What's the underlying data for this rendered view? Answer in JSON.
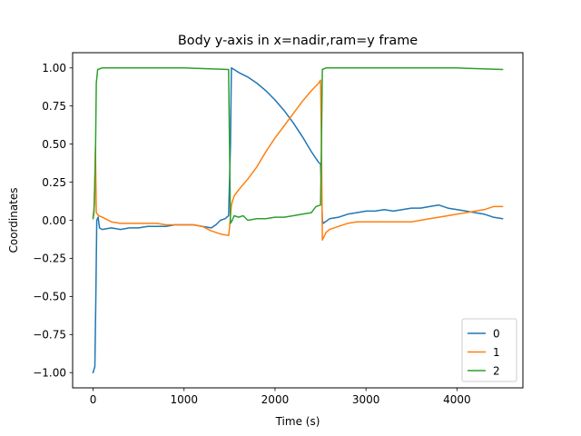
{
  "chart_data": {
    "type": "line",
    "title": "Body y-axis in x=nadir,ram=y frame",
    "xlabel": "Time (s)",
    "ylabel": "Coordinates",
    "xlim": [
      -225,
      4725
    ],
    "ylim": [
      -1.1,
      1.1
    ],
    "xticks": [
      0,
      1000,
      2000,
      3000,
      4000
    ],
    "xtick_labels": [
      "0",
      "1000",
      "2000",
      "3000",
      "4000"
    ],
    "yticks": [
      -1.0,
      -0.75,
      -0.5,
      -0.25,
      0.0,
      0.25,
      0.5,
      0.75,
      1.0
    ],
    "ytick_labels": [
      "−1.00",
      "−0.75",
      "−0.50",
      "−0.25",
      "0.00",
      "0.25",
      "0.50",
      "0.75",
      "1.00"
    ],
    "grid": false,
    "legend_position": "lower-right",
    "series": [
      {
        "name": "0",
        "color": "#1f77b4",
        "points": [
          [
            0,
            -1.0
          ],
          [
            20,
            -0.96
          ],
          [
            30,
            -0.5
          ],
          [
            40,
            0.0
          ],
          [
            55,
            0.02
          ],
          [
            70,
            -0.05
          ],
          [
            100,
            -0.06
          ],
          [
            200,
            -0.05
          ],
          [
            300,
            -0.06
          ],
          [
            400,
            -0.05
          ],
          [
            500,
            -0.05
          ],
          [
            600,
            -0.04
          ],
          [
            700,
            -0.04
          ],
          [
            800,
            -0.04
          ],
          [
            900,
            -0.03
          ],
          [
            1000,
            -0.03
          ],
          [
            1100,
            -0.03
          ],
          [
            1200,
            -0.04
          ],
          [
            1300,
            -0.05
          ],
          [
            1350,
            -0.03
          ],
          [
            1400,
            0.0
          ],
          [
            1450,
            0.01
          ],
          [
            1490,
            0.03
          ],
          [
            1510,
            0.5
          ],
          [
            1520,
            1.0
          ],
          [
            1550,
            0.99
          ],
          [
            1600,
            0.97
          ],
          [
            1700,
            0.94
          ],
          [
            1800,
            0.9
          ],
          [
            1900,
            0.85
          ],
          [
            2000,
            0.79
          ],
          [
            2100,
            0.72
          ],
          [
            2200,
            0.64
          ],
          [
            2300,
            0.55
          ],
          [
            2400,
            0.45
          ],
          [
            2480,
            0.38
          ],
          [
            2500,
            0.37
          ],
          [
            2510,
            0.2
          ],
          [
            2520,
            0.0
          ],
          [
            2530,
            -0.02
          ],
          [
            2600,
            0.01
          ],
          [
            2700,
            0.02
          ],
          [
            2800,
            0.04
          ],
          [
            2900,
            0.05
          ],
          [
            3000,
            0.06
          ],
          [
            3100,
            0.06
          ],
          [
            3200,
            0.07
          ],
          [
            3300,
            0.06
          ],
          [
            3400,
            0.07
          ],
          [
            3500,
            0.08
          ],
          [
            3600,
            0.08
          ],
          [
            3700,
            0.09
          ],
          [
            3800,
            0.1
          ],
          [
            3900,
            0.08
          ],
          [
            4000,
            0.07
          ],
          [
            4100,
            0.06
          ],
          [
            4200,
            0.05
          ],
          [
            4300,
            0.04
          ],
          [
            4400,
            0.02
          ],
          [
            4500,
            0.01
          ]
        ]
      },
      {
        "name": "1",
        "color": "#ff7f0e",
        "points": [
          [
            0,
            0.02
          ],
          [
            15,
            0.1
          ],
          [
            25,
            0.48
          ],
          [
            35,
            0.05
          ],
          [
            60,
            0.03
          ],
          [
            100,
            0.02
          ],
          [
            200,
            -0.01
          ],
          [
            300,
            -0.02
          ],
          [
            400,
            -0.02
          ],
          [
            500,
            -0.02
          ],
          [
            600,
            -0.02
          ],
          [
            700,
            -0.02
          ],
          [
            800,
            -0.03
          ],
          [
            900,
            -0.03
          ],
          [
            1000,
            -0.03
          ],
          [
            1100,
            -0.03
          ],
          [
            1200,
            -0.04
          ],
          [
            1300,
            -0.07
          ],
          [
            1400,
            -0.09
          ],
          [
            1490,
            -0.1
          ],
          [
            1500,
            -0.05
          ],
          [
            1520,
            0.1
          ],
          [
            1550,
            0.16
          ],
          [
            1600,
            0.2
          ],
          [
            1700,
            0.27
          ],
          [
            1800,
            0.35
          ],
          [
            1900,
            0.45
          ],
          [
            2000,
            0.54
          ],
          [
            2100,
            0.62
          ],
          [
            2200,
            0.7
          ],
          [
            2300,
            0.78
          ],
          [
            2400,
            0.85
          ],
          [
            2480,
            0.9
          ],
          [
            2500,
            0.92
          ],
          [
            2510,
            0.5
          ],
          [
            2520,
            -0.13
          ],
          [
            2560,
            -0.08
          ],
          [
            2600,
            -0.06
          ],
          [
            2700,
            -0.04
          ],
          [
            2800,
            -0.02
          ],
          [
            2900,
            -0.01
          ],
          [
            3000,
            -0.01
          ],
          [
            3100,
            -0.01
          ],
          [
            3200,
            -0.01
          ],
          [
            3300,
            -0.01
          ],
          [
            3400,
            -0.01
          ],
          [
            3500,
            -0.01
          ],
          [
            3600,
            0.0
          ],
          [
            3700,
            0.01
          ],
          [
            3800,
            0.02
          ],
          [
            3900,
            0.03
          ],
          [
            4000,
            0.04
          ],
          [
            4100,
            0.05
          ],
          [
            4200,
            0.06
          ],
          [
            4300,
            0.07
          ],
          [
            4400,
            0.09
          ],
          [
            4500,
            0.09
          ]
        ]
      },
      {
        "name": "2",
        "color": "#2ca02c",
        "points": [
          [
            0,
            0.01
          ],
          [
            10,
            0.05
          ],
          [
            25,
            0.4
          ],
          [
            35,
            0.9
          ],
          [
            50,
            0.99
          ],
          [
            100,
            1.0
          ],
          [
            500,
            1.0
          ],
          [
            1000,
            1.0
          ],
          [
            1490,
            0.99
          ],
          [
            1500,
            0.5
          ],
          [
            1510,
            -0.02
          ],
          [
            1530,
            0.0
          ],
          [
            1550,
            0.03
          ],
          [
            1600,
            0.02
          ],
          [
            1650,
            0.03
          ],
          [
            1700,
            0.0
          ],
          [
            1800,
            0.01
          ],
          [
            1900,
            0.01
          ],
          [
            2000,
            0.02
          ],
          [
            2100,
            0.02
          ],
          [
            2200,
            0.03
          ],
          [
            2300,
            0.04
          ],
          [
            2400,
            0.05
          ],
          [
            2450,
            0.09
          ],
          [
            2500,
            0.1
          ],
          [
            2510,
            0.5
          ],
          [
            2520,
            0.99
          ],
          [
            2560,
            1.0
          ],
          [
            3000,
            1.0
          ],
          [
            3500,
            1.0
          ],
          [
            4000,
            1.0
          ],
          [
            4500,
            0.99
          ]
        ]
      }
    ]
  }
}
